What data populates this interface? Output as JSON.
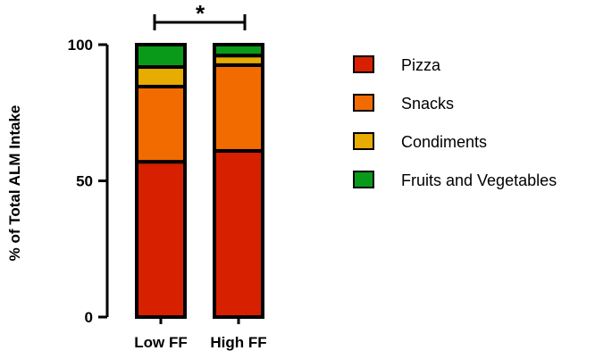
{
  "chart_data": {
    "type": "bar",
    "stacked": true,
    "title": "",
    "xlabel": "",
    "ylabel": "% of Total ALM Intake",
    "ylim": [
      0,
      100
    ],
    "yticks": [
      "0",
      "50",
      "100"
    ],
    "categories": [
      "Low FF",
      "High FF"
    ],
    "series": [
      {
        "name": "Pizza",
        "color": "#d62000",
        "values": [
          57,
          61
        ]
      },
      {
        "name": "Snacks",
        "color": "#f26b00",
        "values": [
          27.6,
          31.5
        ]
      },
      {
        "name": "Condiments",
        "color": "#e6ac00",
        "values": [
          7.2,
          3.5
        ]
      },
      {
        "name": "Fruits and Vegetables",
        "color": "#0a9a1a",
        "values": [
          8.2,
          4
        ]
      }
    ],
    "annotation": "*",
    "legend_position": "right"
  }
}
